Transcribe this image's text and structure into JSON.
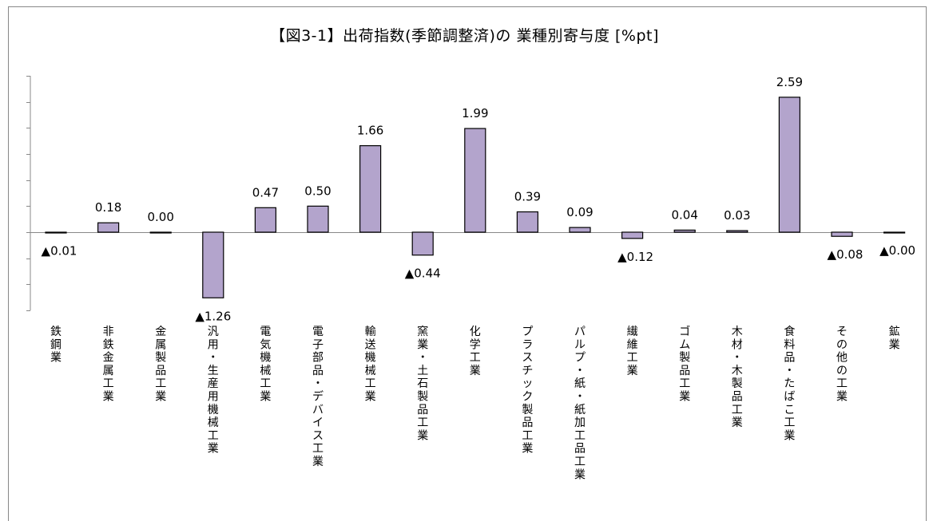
{
  "chart_data": {
    "type": "bar",
    "title": "【図3-1】出荷指数(季節調整済)の 業種別寄与度 [%pt]",
    "xlabel": "",
    "ylabel": "",
    "ylim": [
      -1.5,
      3.0
    ],
    "grid": false,
    "bar_color": "#b3a4cc",
    "bar_edge_color": "#000000",
    "categories": [
      "鉄鋼業",
      "非鉄金属工業",
      "金属製品工業",
      "汎用・生産用機械工業",
      "電気機械工業",
      "電子部品・デバイス工業",
      "輸送機械工業",
      "窯業・土石製品工業",
      "化学工業",
      "プラスチック製品工業",
      "パルプ・紙・紙加工品工業",
      "繊維工業",
      "ゴム製品工業",
      "木材・木製品工業",
      "食料品・たばこ工業",
      "その他の工業",
      "鉱業"
    ],
    "values": [
      -0.01,
      0.18,
      0.0,
      -1.26,
      0.47,
      0.5,
      1.66,
      -0.44,
      1.99,
      0.39,
      0.09,
      -0.12,
      0.04,
      0.03,
      2.59,
      -0.08,
      -0.0
    ],
    "value_labels": [
      "▲0.01",
      "0.18",
      "0.00",
      "▲1.26",
      "0.47",
      "0.50",
      "1.66",
      "▲0.44",
      "1.99",
      "0.39",
      "0.09",
      "▲0.12",
      "0.04",
      "0.03",
      "2.59",
      "▲0.08",
      "▲0.00"
    ]
  }
}
